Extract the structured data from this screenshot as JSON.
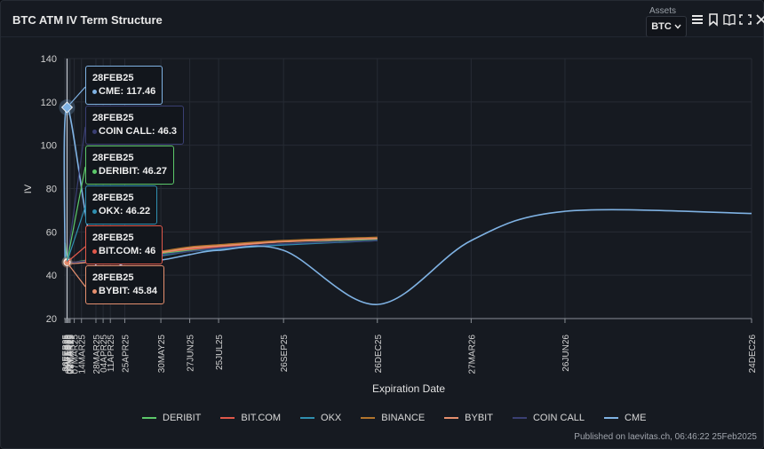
{
  "title": "BTC ATM IV Term Structure",
  "assets": {
    "label": "Assets",
    "value": "BTC"
  },
  "toolbar": {
    "icons": [
      "menu-icon",
      "bookmark-icon",
      "book-icon",
      "fullscreen-icon",
      "close-icon"
    ]
  },
  "footer": "Published on laevitas.ch, 06:46:22 25Feb2025",
  "colors": {
    "DERIBIT": "#5cc86a",
    "BIT.COM": "#e0584a",
    "OKX": "#2f8fb0",
    "BINANCE": "#b3742c",
    "BYBIT": "#e58f6e",
    "COIN CALL": "#3a3f73",
    "CME": "#7fb2e3"
  },
  "tooltips": [
    {
      "date": "28FEB25",
      "series": "CME",
      "value": "117.46"
    },
    {
      "date": "28FEB25",
      "series": "COIN CALL",
      "value": "46.3"
    },
    {
      "date": "28FEB25",
      "series": "DERIBIT",
      "value": "46.27"
    },
    {
      "date": "28FEB25",
      "series": "OKX",
      "value": "46.22"
    },
    {
      "date": "28FEB25",
      "series": "BIT.COM",
      "value": "46"
    },
    {
      "date": "28FEB25",
      "series": "BYBIT",
      "value": "45.84"
    }
  ],
  "chart_data": {
    "type": "line",
    "xlabel": "Expiration Date",
    "ylabel": "IV",
    "ylim": [
      20,
      140
    ],
    "yticks": [
      20,
      40,
      60,
      80,
      100,
      120,
      140
    ],
    "xlim": [
      "2025-02-25",
      "2026-12-24"
    ],
    "grid": true,
    "legend": "bottom",
    "xticks": [
      {
        "label": "26FEB25",
        "date": "2025-02-26"
      },
      {
        "label": "27FEB25",
        "date": "2025-02-27"
      },
      {
        "label": "28FEB25",
        "date": "2025-02-28"
      },
      {
        "label": "01MAR25",
        "date": "2025-03-01"
      },
      {
        "label": "02MAR25",
        "date": "2025-03-02"
      },
      {
        "label": "03MAR25",
        "date": "2025-03-03"
      },
      {
        "label": "07MAR25",
        "date": "2025-03-07"
      },
      {
        "label": "14MAR25",
        "date": "2025-03-14"
      },
      {
        "label": "28MAR25",
        "date": "2025-03-28"
      },
      {
        "label": "04APR25",
        "date": "2025-04-04"
      },
      {
        "label": "11APR25",
        "date": "2025-04-11"
      },
      {
        "label": "25APR25",
        "date": "2025-04-25"
      },
      {
        "label": "30MAY25",
        "date": "2025-05-30"
      },
      {
        "label": "27JUN25",
        "date": "2025-06-27"
      },
      {
        "label": "25JUL25",
        "date": "2025-07-25"
      },
      {
        "label": "26SEP25",
        "date": "2025-09-26"
      },
      {
        "label": "26DEC25",
        "date": "2025-12-26"
      },
      {
        "label": "27MAR26",
        "date": "2026-03-27"
      },
      {
        "label": "26JUN26",
        "date": "2026-06-26"
      },
      {
        "label": "24DEC26",
        "date": "2026-12-24"
      }
    ],
    "series": [
      {
        "name": "DERIBIT",
        "points": [
          [
            "2025-02-26",
            55
          ],
          [
            "2025-02-27",
            50
          ],
          [
            "2025-02-28",
            46.27
          ],
          [
            "2025-03-07",
            46
          ],
          [
            "2025-03-14",
            46.5
          ],
          [
            "2025-03-28",
            47.5
          ],
          [
            "2025-04-25",
            48.5
          ],
          [
            "2025-05-30",
            50
          ],
          [
            "2025-06-27",
            51.5
          ],
          [
            "2025-07-25",
            52.5
          ],
          [
            "2025-09-26",
            54.5
          ],
          [
            "2025-12-26",
            56.5
          ]
        ]
      },
      {
        "name": "BIT.COM",
        "points": [
          [
            "2025-02-26",
            47
          ],
          [
            "2025-02-28",
            46
          ],
          [
            "2025-03-07",
            46
          ],
          [
            "2025-03-28",
            47
          ],
          [
            "2025-04-25",
            48.5
          ],
          [
            "2025-05-30",
            50.5
          ],
          [
            "2025-06-27",
            52
          ],
          [
            "2025-07-25",
            53
          ],
          [
            "2025-09-26",
            55.5
          ],
          [
            "2025-12-26",
            57
          ]
        ]
      },
      {
        "name": "OKX",
        "points": [
          [
            "2025-02-26",
            52
          ],
          [
            "2025-02-27",
            48
          ],
          [
            "2025-02-28",
            46.22
          ],
          [
            "2025-03-07",
            45.8
          ],
          [
            "2025-03-28",
            46.5
          ],
          [
            "2025-04-25",
            47.5
          ],
          [
            "2025-05-30",
            49
          ],
          [
            "2025-06-27",
            51
          ],
          [
            "2025-07-25",
            52
          ],
          [
            "2025-09-26",
            54
          ],
          [
            "2025-12-26",
            56
          ]
        ]
      },
      {
        "name": "BINANCE",
        "points": [
          [
            "2025-02-26",
            46
          ],
          [
            "2025-02-28",
            46
          ],
          [
            "2025-03-07",
            45.8
          ],
          [
            "2025-03-28",
            46.5
          ],
          [
            "2025-04-25",
            48.5
          ],
          [
            "2025-05-30",
            51
          ],
          [
            "2025-06-27",
            53
          ],
          [
            "2025-07-25",
            54
          ],
          [
            "2025-09-26",
            56
          ],
          [
            "2025-12-26",
            57.5
          ]
        ]
      },
      {
        "name": "BYBIT",
        "points": [
          [
            "2025-02-26",
            46.5
          ],
          [
            "2025-02-28",
            45.84
          ],
          [
            "2025-03-07",
            45.5
          ],
          [
            "2025-03-28",
            46.5
          ],
          [
            "2025-04-25",
            48.5
          ],
          [
            "2025-05-30",
            50.5
          ],
          [
            "2025-06-27",
            52.5
          ],
          [
            "2025-07-25",
            53.5
          ],
          [
            "2025-09-26",
            55.5
          ],
          [
            "2025-12-26",
            57
          ]
        ]
      },
      {
        "name": "COIN CALL",
        "points": [
          [
            "2025-02-26",
            47
          ],
          [
            "2025-02-28",
            46.3
          ],
          [
            "2025-03-07",
            46
          ],
          [
            "2025-03-28",
            47
          ],
          [
            "2025-04-25",
            48
          ],
          [
            "2025-05-30",
            49.5
          ],
          [
            "2025-06-27",
            51
          ],
          [
            "2025-07-25",
            52.5
          ],
          [
            "2025-09-26",
            54.5
          ],
          [
            "2025-12-26",
            56
          ]
        ]
      },
      {
        "name": "CME",
        "points": [
          [
            "2025-02-26",
            45
          ],
          [
            "2025-02-28",
            117.46
          ],
          [
            "2025-03-28",
            44.5
          ],
          [
            "2025-04-25",
            45.5
          ],
          [
            "2025-05-30",
            47
          ],
          [
            "2025-06-27",
            49.5
          ],
          [
            "2025-07-25",
            51.5
          ],
          [
            "2025-09-26",
            51.5
          ],
          [
            "2025-12-26",
            26.5
          ],
          [
            "2026-03-27",
            56
          ],
          [
            "2026-06-26",
            69.5
          ],
          [
            "2026-12-24",
            68.5
          ]
        ]
      }
    ]
  }
}
